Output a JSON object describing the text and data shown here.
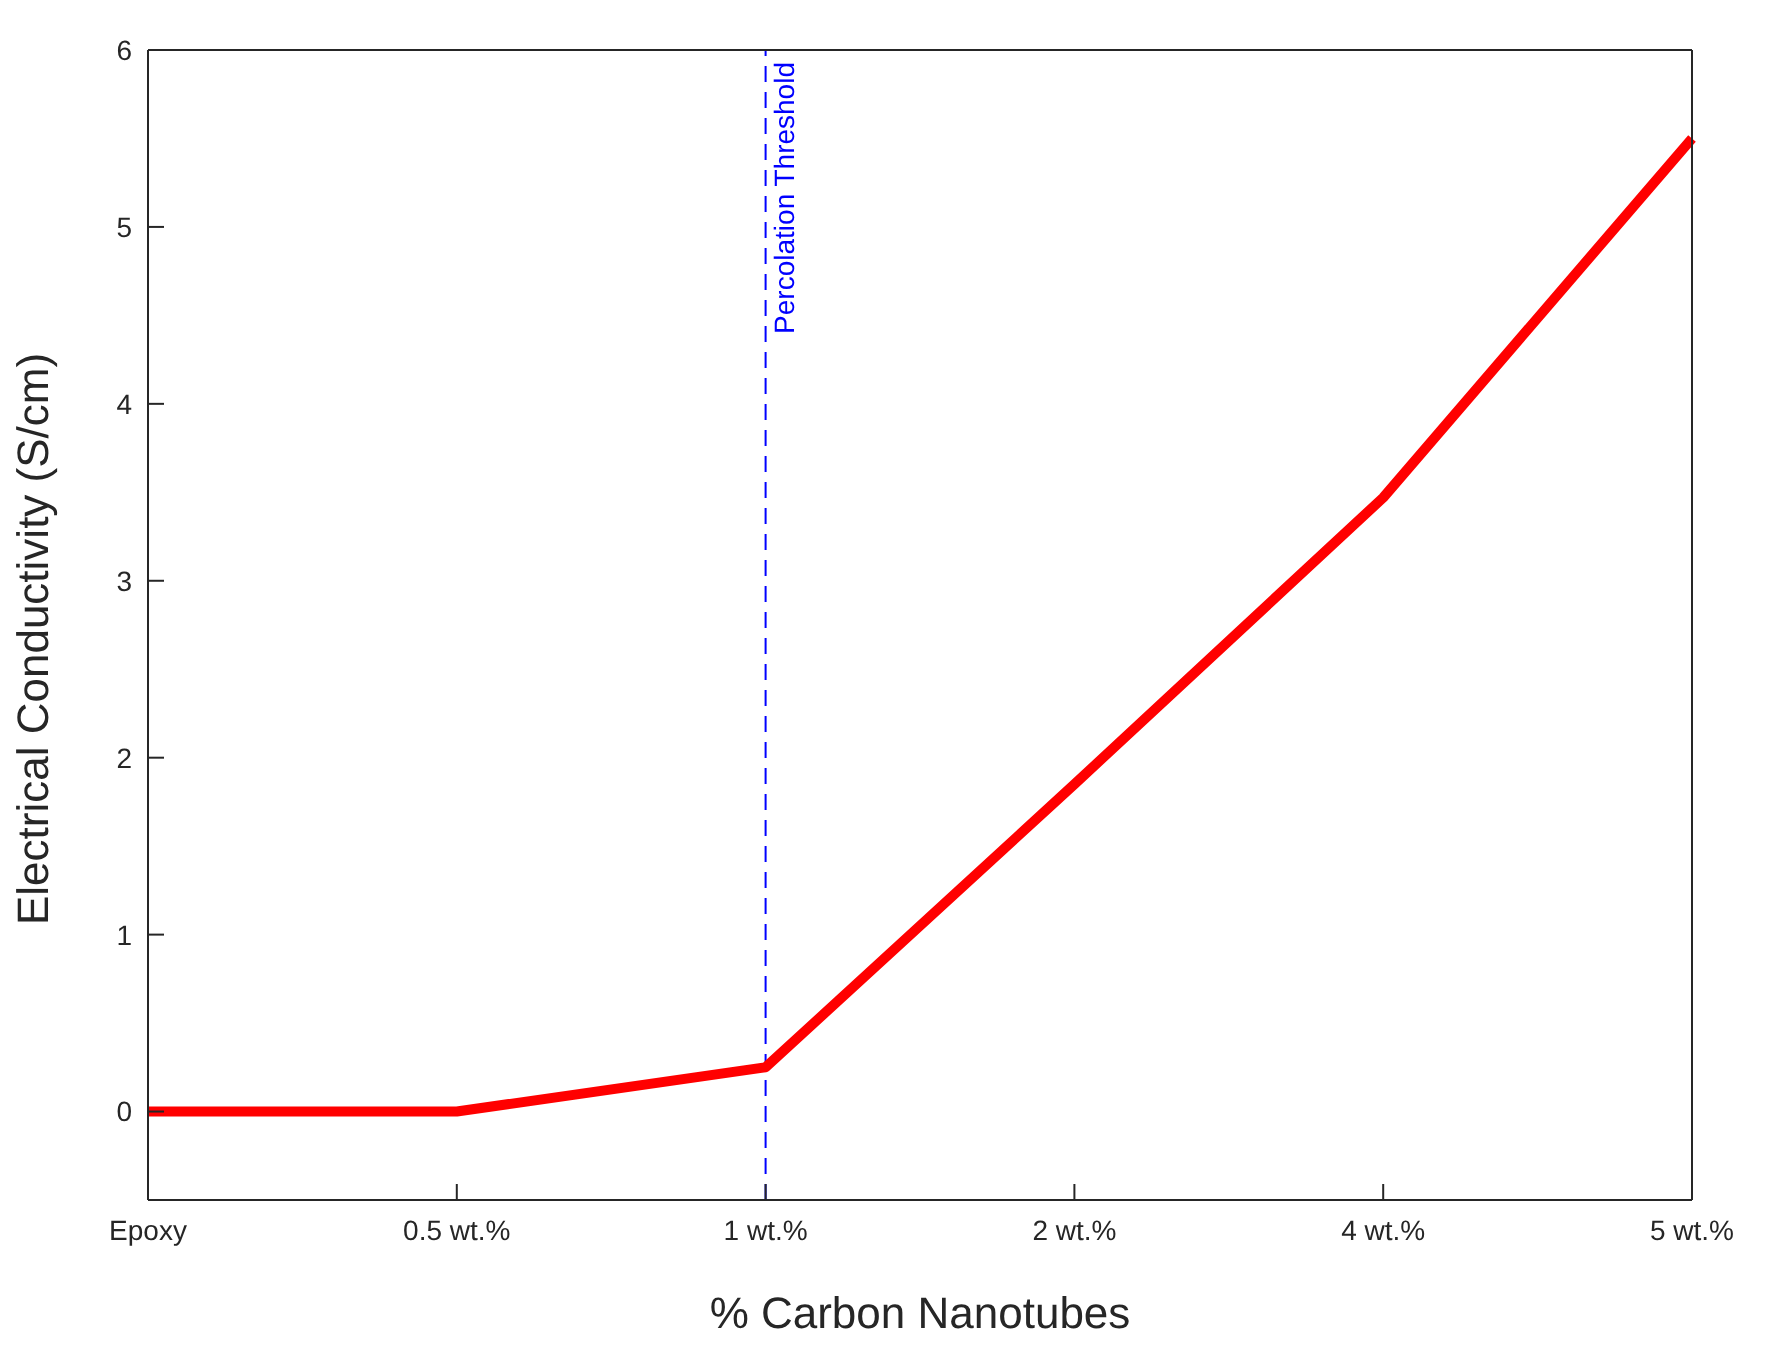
{
  "chart_data": {
    "type": "line",
    "xlabel": "% Carbon Nanotubes",
    "ylabel": "Electrical Conductivity (S/cm)",
    "categories": [
      "Epoxy",
      "0.5 wt.%",
      "1 wt.%",
      "2 wt.%",
      "4 wt.%",
      "5 wt.%"
    ],
    "series": [
      {
        "color": "#ff0000",
        "values": [
          0,
          0,
          0.25,
          1.85,
          3.47,
          5.5
        ]
      }
    ],
    "ylim": [
      -0.5,
      6
    ],
    "yticks": [
      0,
      1,
      2,
      3,
      4,
      5,
      6
    ],
    "grid": false,
    "legend": false,
    "marker": "none",
    "line_style": "solid",
    "ref_lines": [
      {
        "axis": "x",
        "value": "1 wt.%",
        "label": "Percolation Threshold",
        "color": "#0000ff",
        "line_style": "dashed"
      }
    ]
  }
}
